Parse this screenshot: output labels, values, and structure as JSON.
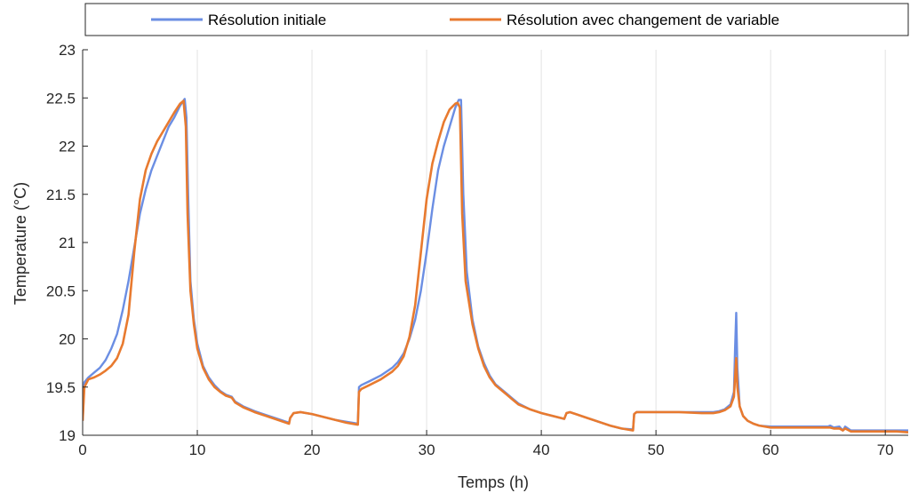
{
  "chart_data": {
    "type": "line",
    "title": "",
    "xlabel": "Temps (h)",
    "ylabel": "Temperature (°C)",
    "xlim": [
      0,
      72
    ],
    "ylim": [
      19,
      23
    ],
    "xticks": [
      0,
      10,
      20,
      30,
      40,
      50,
      60,
      70
    ],
    "yticks": [
      19,
      19.5,
      20,
      20.5,
      21,
      21.5,
      22,
      22.5,
      23
    ],
    "xtick_labels": [
      "0",
      "10",
      "20",
      "30",
      "40",
      "50",
      "60",
      "70"
    ],
    "ytick_labels": [
      "19",
      "19.5",
      "20",
      "20.5",
      "21",
      "21.5",
      "22",
      "22.5",
      "23"
    ],
    "grid": "x",
    "legend_position": "top",
    "series": [
      {
        "name": "Résolution initiale",
        "color": "#6b8ee3",
        "x": [
          0,
          0.15,
          0.5,
          1,
          1.5,
          2,
          2.5,
          3,
          3.5,
          4,
          4.5,
          5,
          5.5,
          6,
          6.5,
          7,
          7.5,
          8,
          8.5,
          8.9,
          9.05,
          9.2,
          9.4,
          9.7,
          10,
          10.5,
          11,
          11.5,
          12,
          12.5,
          13,
          13.3,
          14,
          15,
          16,
          17,
          18,
          18.1,
          18.4,
          19,
          20,
          21,
          22,
          23,
          24,
          24.1,
          24.3,
          25,
          26,
          27,
          27.5,
          28,
          28.5,
          29,
          29.5,
          30,
          30.5,
          31,
          31.5,
          32,
          32.5,
          32.8,
          33,
          33.2,
          33.5,
          34,
          34.5,
          35,
          35.5,
          36,
          36.5,
          37,
          37.5,
          38,
          39,
          40,
          41,
          42,
          42.2,
          42.5,
          43,
          44,
          45,
          46,
          47,
          48,
          48.1,
          48.3,
          50,
          52,
          54,
          55,
          55.5,
          56,
          56.5,
          56.8,
          56.9,
          57,
          57.1,
          57.3,
          57.6,
          58,
          58.5,
          59,
          60,
          61,
          62,
          63,
          64,
          65,
          65.2,
          65.5,
          66,
          66.3,
          66.5,
          67,
          68,
          69,
          70,
          71,
          72
        ],
        "values": [
          19.15,
          19.55,
          19.6,
          19.65,
          19.7,
          19.78,
          19.9,
          20.05,
          20.3,
          20.6,
          20.95,
          21.3,
          21.55,
          21.75,
          21.9,
          22.05,
          22.2,
          22.3,
          22.42,
          22.49,
          22.3,
          21.5,
          20.6,
          20.2,
          19.95,
          19.72,
          19.6,
          19.52,
          19.46,
          19.42,
          19.4,
          19.35,
          19.3,
          19.25,
          19.21,
          19.17,
          19.13,
          19.18,
          19.23,
          19.24,
          19.22,
          19.19,
          19.16,
          19.14,
          19.12,
          19.5,
          19.52,
          19.56,
          19.62,
          19.7,
          19.76,
          19.85,
          20.0,
          20.2,
          20.5,
          20.9,
          21.35,
          21.75,
          22.0,
          22.2,
          22.4,
          22.48,
          22.48,
          21.5,
          20.7,
          20.2,
          19.92,
          19.75,
          19.62,
          19.53,
          19.48,
          19.43,
          19.38,
          19.33,
          19.27,
          19.23,
          19.2,
          19.17,
          19.23,
          19.24,
          19.22,
          19.18,
          19.14,
          19.1,
          19.07,
          19.06,
          19.22,
          19.24,
          19.24,
          19.24,
          19.24,
          19.24,
          19.25,
          19.27,
          19.32,
          19.45,
          19.9,
          20.27,
          19.7,
          19.3,
          19.2,
          19.15,
          19.12,
          19.1,
          19.09,
          19.09,
          19.09,
          19.09,
          19.09,
          19.09,
          19.1,
          19.08,
          19.09,
          19.05,
          19.09,
          19.05,
          19.05,
          19.05,
          19.05,
          19.05,
          19.05
        ]
      },
      {
        "name": "Résolution avec changement de variable",
        "color": "#e87a2f",
        "x": [
          0,
          0.15,
          0.5,
          1,
          1.5,
          2,
          2.5,
          3,
          3.5,
          4,
          4.5,
          5,
          5.5,
          6,
          6.5,
          7,
          7.5,
          8,
          8.5,
          8.8,
          9.0,
          9.15,
          9.4,
          9.7,
          10,
          10.5,
          11,
          11.5,
          12,
          12.5,
          13,
          13.3,
          14,
          15,
          16,
          17,
          18,
          18.1,
          18.4,
          19,
          20,
          21,
          22,
          23,
          24,
          24.1,
          24.3,
          25,
          26,
          27,
          27.5,
          28,
          28.5,
          29,
          29.5,
          30,
          30.5,
          31,
          31.5,
          32,
          32.5,
          32.7,
          32.9,
          33.1,
          33.4,
          34,
          34.5,
          35,
          35.5,
          36,
          36.5,
          37,
          37.5,
          38,
          39,
          40,
          41,
          42,
          42.2,
          42.5,
          43,
          44,
          45,
          46,
          47,
          48,
          48.1,
          48.3,
          50,
          52,
          54,
          55,
          55.5,
          56,
          56.5,
          56.8,
          56.9,
          57,
          57.1,
          57.3,
          57.6,
          58,
          58.5,
          59,
          60,
          61,
          62,
          63,
          64,
          65,
          65.2,
          65.5,
          66,
          66.3,
          66.5,
          67,
          68,
          69,
          70,
          71,
          72
        ],
        "values": [
          19.15,
          19.5,
          19.58,
          19.6,
          19.63,
          19.67,
          19.72,
          19.8,
          19.95,
          20.25,
          20.9,
          21.45,
          21.75,
          21.92,
          22.05,
          22.15,
          22.25,
          22.35,
          22.44,
          22.47,
          22.2,
          21.3,
          20.5,
          20.15,
          19.9,
          19.7,
          19.58,
          19.5,
          19.45,
          19.41,
          19.39,
          19.34,
          19.29,
          19.24,
          19.2,
          19.16,
          19.12,
          19.18,
          19.23,
          19.24,
          19.22,
          19.19,
          19.16,
          19.13,
          19.11,
          19.45,
          19.48,
          19.52,
          19.58,
          19.66,
          19.72,
          19.82,
          20.02,
          20.35,
          20.9,
          21.45,
          21.82,
          22.05,
          22.25,
          22.38,
          22.44,
          22.45,
          22.4,
          21.3,
          20.6,
          20.15,
          19.9,
          19.72,
          19.6,
          19.52,
          19.47,
          19.42,
          19.37,
          19.32,
          19.27,
          19.23,
          19.2,
          19.17,
          19.23,
          19.24,
          19.22,
          19.18,
          19.14,
          19.1,
          19.07,
          19.05,
          19.22,
          19.24,
          19.24,
          19.24,
          19.23,
          19.23,
          19.24,
          19.26,
          19.3,
          19.4,
          19.6,
          19.8,
          19.5,
          19.3,
          19.2,
          19.15,
          19.12,
          19.1,
          19.08,
          19.08,
          19.08,
          19.08,
          19.08,
          19.08,
          19.08,
          19.07,
          19.07,
          19.05,
          19.07,
          19.04,
          19.04,
          19.04,
          19.04,
          19.04,
          19.03
        ]
      }
    ]
  }
}
